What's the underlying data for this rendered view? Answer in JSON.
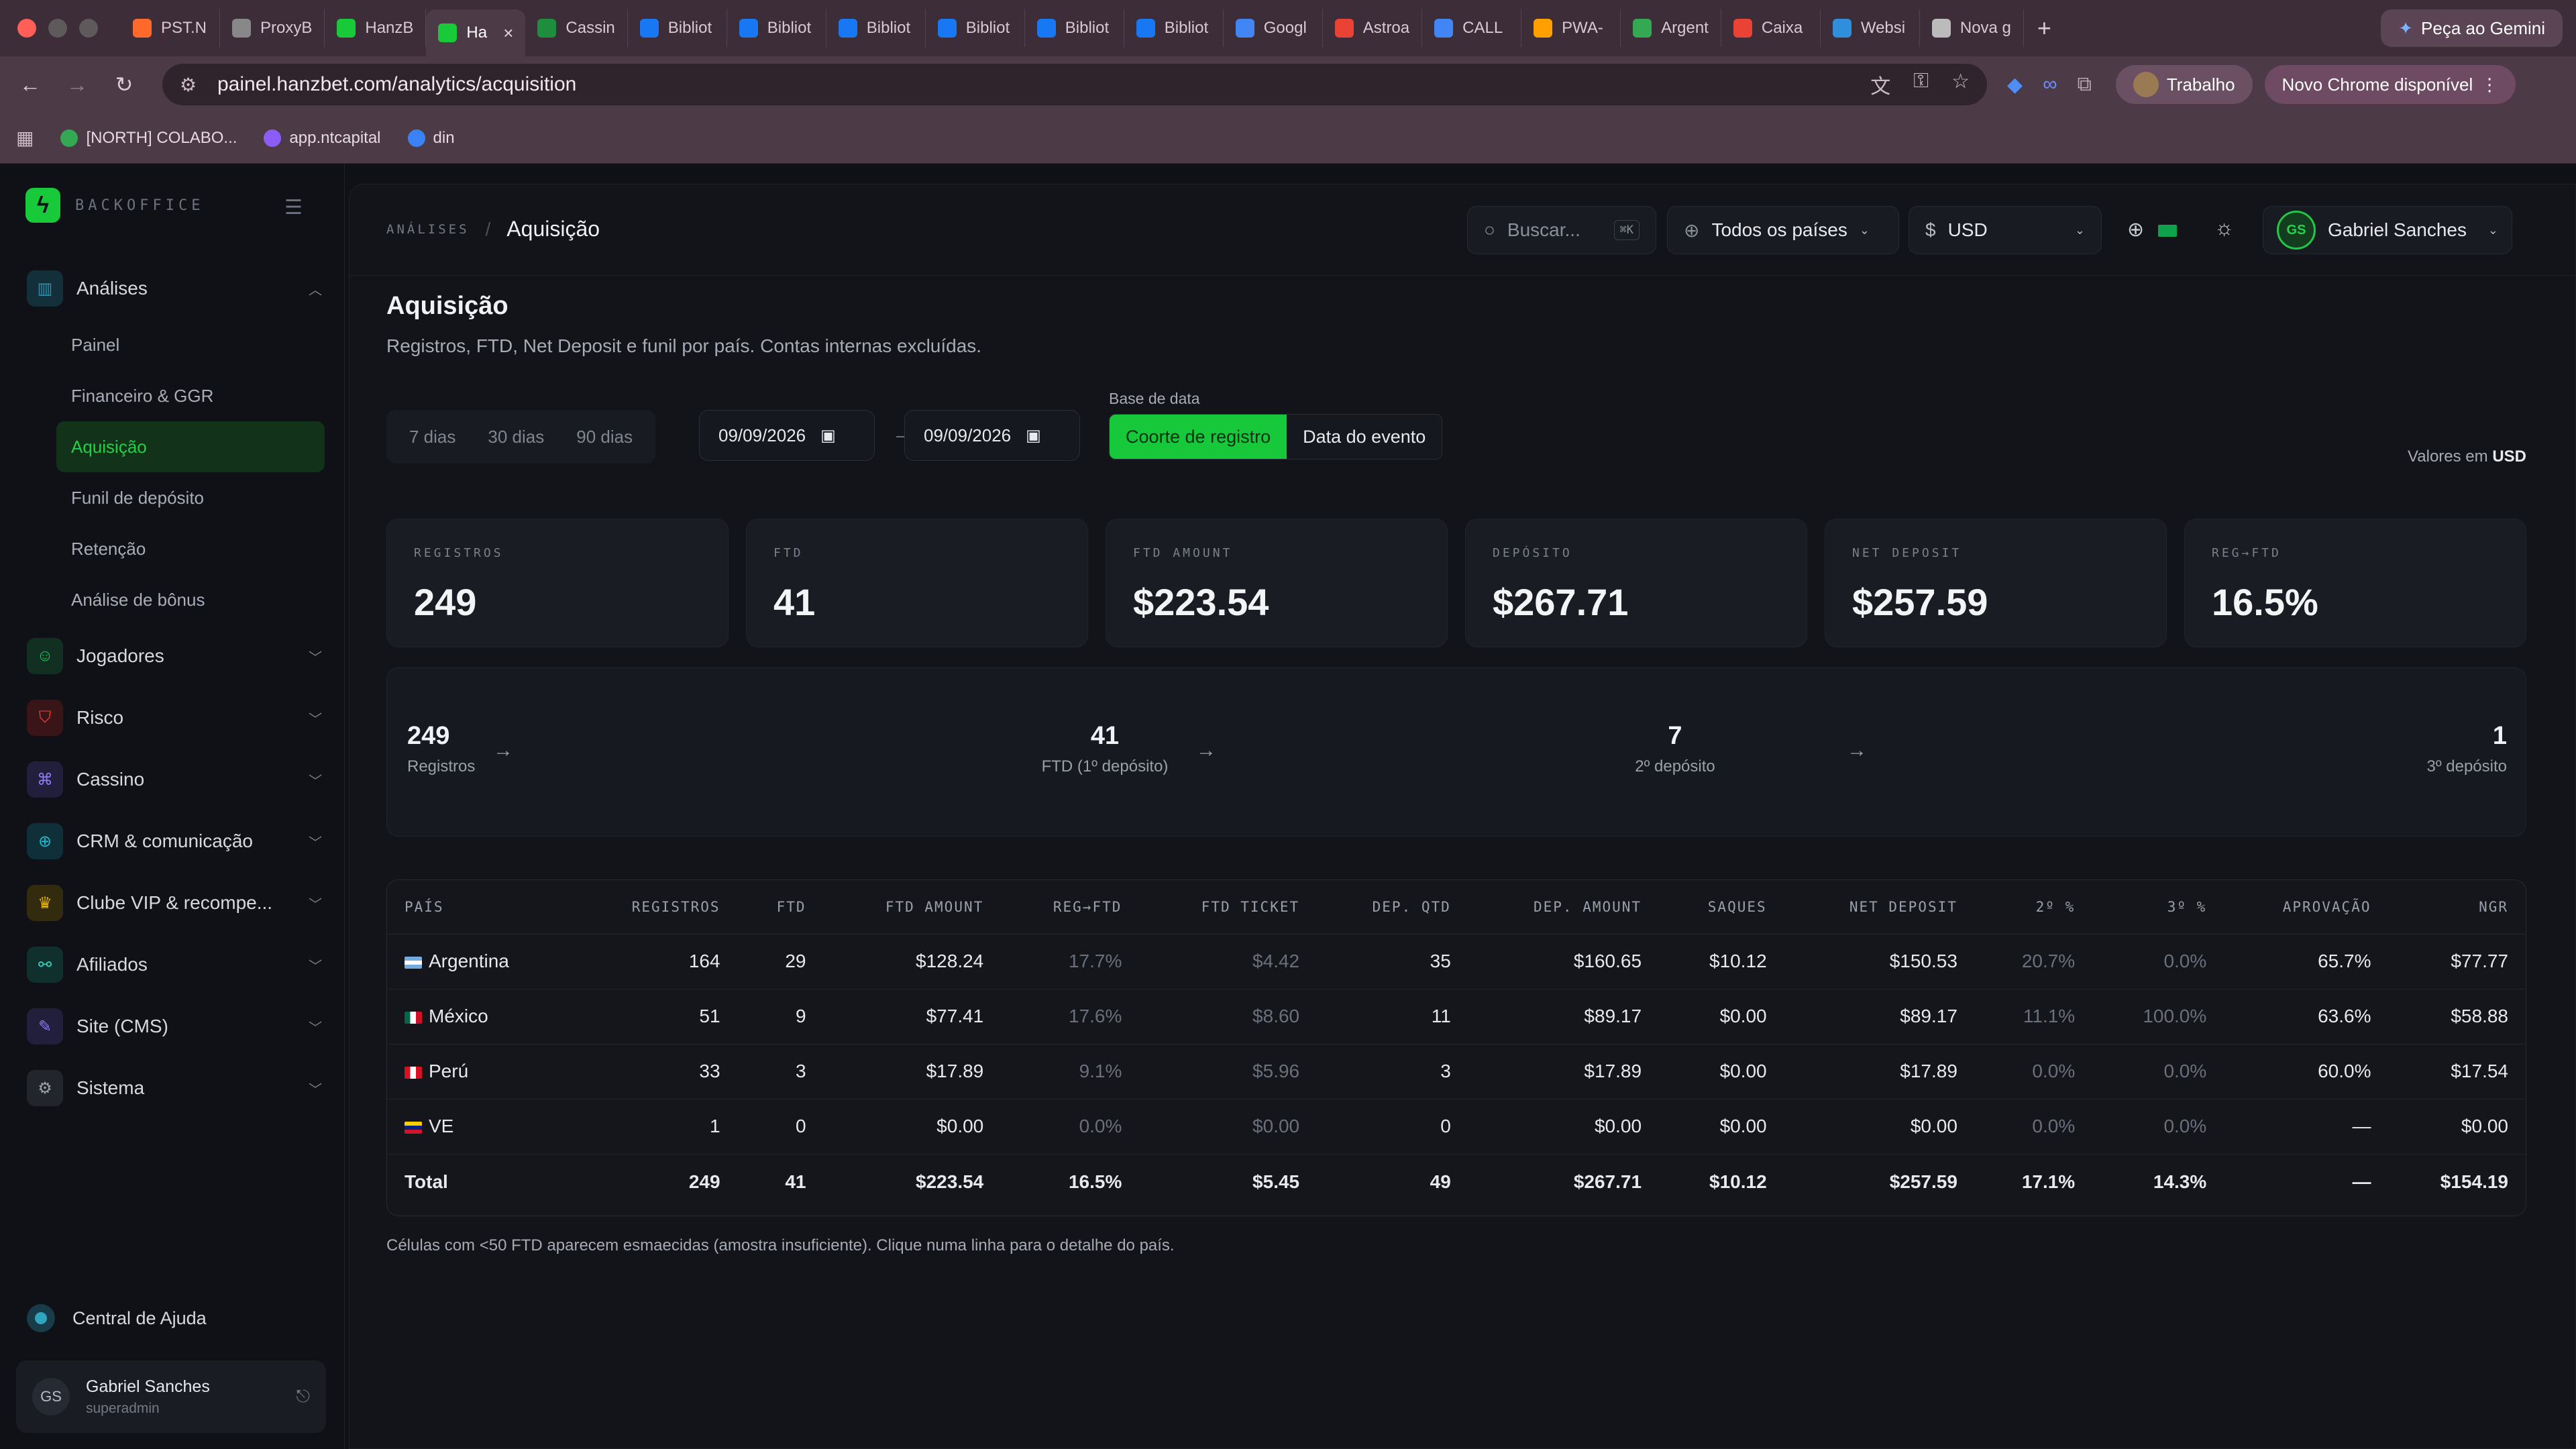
{
  "browser": {
    "tabs": [
      {
        "label": "PST.N",
        "icon": "fire-icon",
        "color": "#ff6a2b"
      },
      {
        "label": "ProxyB",
        "icon": "proxy-icon",
        "color": "#888888"
      },
      {
        "label": "HanzB",
        "icon": "hanzbet-icon",
        "color": "#18c93a"
      },
      {
        "label": "Ha",
        "icon": "hanzbet-icon",
        "color": "#18c93a",
        "active": true
      },
      {
        "label": "Cassin",
        "icon": "sheets-icon",
        "color": "#1e8e3e"
      },
      {
        "label": "Bibliot",
        "icon": "meta-icon",
        "color": "#1877f2"
      },
      {
        "label": "Bibliot",
        "icon": "meta-icon",
        "color": "#1877f2"
      },
      {
        "label": "Bibliot",
        "icon": "meta-icon",
        "color": "#1877f2"
      },
      {
        "label": "Bibliot",
        "icon": "meta-icon",
        "color": "#1877f2"
      },
      {
        "label": "Bibliot",
        "icon": "meta-icon",
        "color": "#1877f2"
      },
      {
        "label": "Bibliot",
        "icon": "meta-icon",
        "color": "#1877f2"
      },
      {
        "label": "Googl",
        "icon": "google-ads-icon",
        "color": "#4285f4"
      },
      {
        "label": "Astroa",
        "icon": "gmail-icon",
        "color": "#ea4335"
      },
      {
        "label": "CALL",
        "icon": "docs-icon",
        "color": "#4285f4"
      },
      {
        "label": "PWA-",
        "icon": "firebase-icon",
        "color": "#ffa000"
      },
      {
        "label": "Argent",
        "icon": "drive-icon",
        "color": "#34a853"
      },
      {
        "label": "Caixa",
        "icon": "gmail-icon",
        "color": "#ea4335"
      },
      {
        "label": "Websi",
        "icon": "edge-icon",
        "color": "#2f8fdd"
      },
      {
        "label": "Nova g",
        "icon": "chrome-icon",
        "color": "#bbbbbb"
      }
    ],
    "gemini_label": "Peça ao Gemini",
    "url": "painel.hanzbet.com/analytics/acquisition",
    "profile_label": "Trabalho",
    "update_label": "Novo Chrome disponível",
    "bookmarks": [
      {
        "label": "[NORTH] COLABO...",
        "color": "#34a853"
      },
      {
        "label": "app.ntcapital",
        "color": "#8b5cf6"
      },
      {
        "label": "din",
        "color": "#3b82f6"
      }
    ]
  },
  "sidebar": {
    "brand": "BACKOFFICE",
    "groups": [
      {
        "label": "Análises",
        "icon": "chart-icon",
        "color": "#2a93b5",
        "bg": "#13303a",
        "expanded": true,
        "items": [
          "Painel",
          "Financeiro & GGR",
          "Aquisição",
          "Funil de depósito",
          "Retenção",
          "Análise de bônus"
        ],
        "active": "Aquisição"
      },
      {
        "label": "Jogadores",
        "icon": "users-icon",
        "color": "#22c55e",
        "bg": "#113021"
      },
      {
        "label": "Risco",
        "icon": "shield-icon",
        "color": "#ef4444",
        "bg": "#3a1518"
      },
      {
        "label": "Cassino",
        "icon": "gamepad-icon",
        "color": "#8b7cf6",
        "bg": "#221f3d"
      },
      {
        "label": "CRM & comunicação",
        "icon": "globe-icon",
        "color": "#22b8cf",
        "bg": "#0f3038"
      },
      {
        "label": "Clube VIP & recompe...",
        "icon": "trophy-icon",
        "color": "#eab308",
        "bg": "#332b0d"
      },
      {
        "label": "Afiliados",
        "icon": "network-icon",
        "color": "#2dd4bf",
        "bg": "#0f302c"
      },
      {
        "label": "Site (CMS)",
        "icon": "edit-icon",
        "color": "#8b7cf6",
        "bg": "#221f3d"
      },
      {
        "label": "Sistema",
        "icon": "gear-icon",
        "color": "#9ca3af",
        "bg": "#22252c"
      }
    ],
    "help_label": "Central de Ajuda",
    "user": {
      "initials": "GS",
      "name": "Gabriel Sanches",
      "role": "superadmin"
    }
  },
  "topbar": {
    "breadcrumb_parent": "ANÁLISES",
    "breadcrumb_current": "Aquisição",
    "search_placeholder": "Buscar...",
    "search_shortcut": "⌘K",
    "country_filter": "Todos os países",
    "currency_symbol": "$",
    "currency": "USD",
    "user_initials": "GS",
    "user_name": "Gabriel Sanches"
  },
  "page": {
    "title": "Aquisição",
    "description": "Registros, FTD, Net Deposit e funil por país. Contas internas excluídas.",
    "ranges": [
      "7 dias",
      "30 dias",
      "90 dias"
    ],
    "date_from": "09/09/2026",
    "date_to": "09/09/2026",
    "date_base_label": "Base de data",
    "date_base_options": [
      "Coorte de registro",
      "Data do evento"
    ],
    "date_base_active": "Coorte de registro",
    "values_in_prefix": "Valores em",
    "values_in_currency": "USD",
    "footnote": "Células com <50 FTD aparecem esmaecidas (amostra insuficiente). Clique numa linha para o detalhe do país."
  },
  "kpis": [
    {
      "label": "REGISTROS",
      "value": "249"
    },
    {
      "label": "FTD",
      "value": "41"
    },
    {
      "label": "FTD AMOUNT",
      "value": "$223.54"
    },
    {
      "label": "DEPÓSITO",
      "value": "$267.71"
    },
    {
      "label": "NET DEPOSIT",
      "value": "$257.59"
    },
    {
      "label": "REG→FTD",
      "value": "16.5%"
    }
  ],
  "funnel": [
    {
      "value": "249",
      "label": "Registros"
    },
    {
      "value": "41",
      "label": "FTD (1º depósito)"
    },
    {
      "value": "7",
      "label": "2º depósito"
    },
    {
      "value": "1",
      "label": "3º depósito"
    }
  ],
  "table": {
    "columns": [
      "PAÍS",
      "REGISTROS",
      "FTD",
      "FTD AMOUNT",
      "REG→FTD",
      "FTD TICKET",
      "DEP. QTD",
      "DEP. AMOUNT",
      "SAQUES",
      "NET DEPOSIT",
      "2º %",
      "3º %",
      "APROVAÇÃO",
      "NGR"
    ],
    "rows": [
      {
        "country": "Argentina",
        "flag": "ar",
        "cells": [
          "164",
          "29",
          "$128.24",
          "17.7%",
          "$4.42",
          "35",
          "$160.65",
          "$10.12",
          "$150.53",
          "20.7%",
          "0.0%",
          "65.7%",
          "$77.77"
        ]
      },
      {
        "country": "México",
        "flag": "mx",
        "cells": [
          "51",
          "9",
          "$77.41",
          "17.6%",
          "$8.60",
          "11",
          "$89.17",
          "$0.00",
          "$89.17",
          "11.1%",
          "100.0%",
          "63.6%",
          "$58.88"
        ]
      },
      {
        "country": "Perú",
        "flag": "pe",
        "cells": [
          "33",
          "3",
          "$17.89",
          "9.1%",
          "$5.96",
          "3",
          "$17.89",
          "$0.00",
          "$17.89",
          "0.0%",
          "0.0%",
          "60.0%",
          "$17.54"
        ]
      },
      {
        "country": "VE",
        "flag": "ve",
        "cells": [
          "1",
          "0",
          "$0.00",
          "0.0%",
          "$0.00",
          "0",
          "$0.00",
          "$0.00",
          "$0.00",
          "0.0%",
          "0.0%",
          "—",
          "$0.00"
        ]
      }
    ],
    "total": {
      "label": "Total",
      "cells": [
        "249",
        "41",
        "$223.54",
        "16.5%",
        "$5.45",
        "49",
        "$267.71",
        "$10.12",
        "$257.59",
        "17.1%",
        "14.3%",
        "—",
        "$154.19"
      ]
    }
  }
}
